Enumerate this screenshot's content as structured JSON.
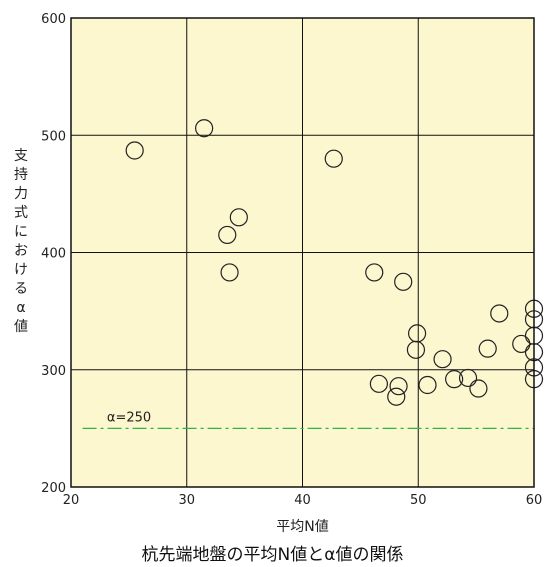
{
  "chart_data": {
    "type": "scatter",
    "title": "杭先端地盤の平均N値とα値の関係",
    "xlabel": "平均N値",
    "ylabel": "支持力式におけるα値",
    "xlim": [
      20,
      60
    ],
    "ylim": [
      200,
      600
    ],
    "xticks": [
      20,
      30,
      40,
      50,
      60
    ],
    "yticks": [
      200,
      300,
      400,
      500,
      600
    ],
    "grid": true,
    "reference_line": {
      "y": 250,
      "label": "α=250",
      "color": "#2fb34a"
    },
    "colors": {
      "plot_bg": "#fdf7cf",
      "marker": "#222222",
      "grid": "#111111"
    },
    "points": [
      {
        "x": 25.5,
        "y": 487
      },
      {
        "x": 31.5,
        "y": 506
      },
      {
        "x": 33.5,
        "y": 415
      },
      {
        "x": 34.5,
        "y": 430
      },
      {
        "x": 33.7,
        "y": 383
      },
      {
        "x": 42.7,
        "y": 480
      },
      {
        "x": 46.2,
        "y": 383
      },
      {
        "x": 48.7,
        "y": 375
      },
      {
        "x": 46.6,
        "y": 288
      },
      {
        "x": 48.1,
        "y": 277
      },
      {
        "x": 48.3,
        "y": 286
      },
      {
        "x": 49.9,
        "y": 331
      },
      {
        "x": 49.8,
        "y": 317
      },
      {
        "x": 50.8,
        "y": 287
      },
      {
        "x": 52.1,
        "y": 309
      },
      {
        "x": 53.1,
        "y": 292
      },
      {
        "x": 54.3,
        "y": 293
      },
      {
        "x": 55.2,
        "y": 284
      },
      {
        "x": 56.0,
        "y": 318
      },
      {
        "x": 57.0,
        "y": 348
      },
      {
        "x": 58.9,
        "y": 322
      },
      {
        "x": 60.0,
        "y": 352
      },
      {
        "x": 60.0,
        "y": 343
      },
      {
        "x": 60.0,
        "y": 329
      },
      {
        "x": 60.0,
        "y": 315
      },
      {
        "x": 60.0,
        "y": 302
      },
      {
        "x": 60.0,
        "y": 292
      }
    ]
  }
}
